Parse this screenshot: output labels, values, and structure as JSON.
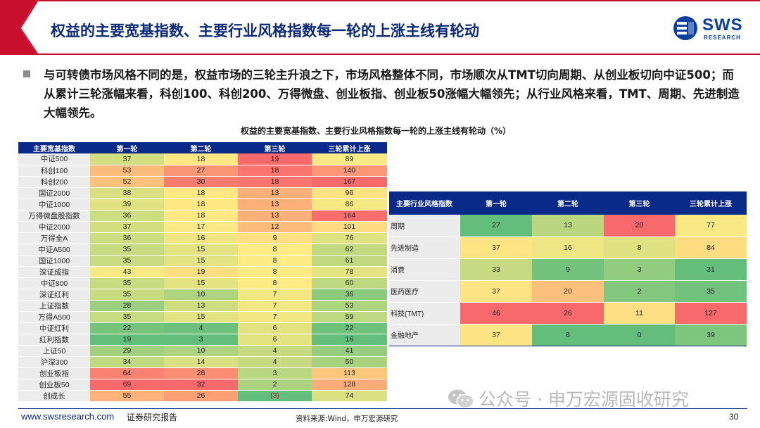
{
  "header": {
    "title": "权益的主要宽基指数、主要行业风格指数每一轮的上涨主线有轮动",
    "logo_text": "SWS",
    "logo_sub": "RESEARCH"
  },
  "bullet": {
    "text": "与可转债市场风格不同的是，权益市场的三轮主升浪之下，市场风格整体不同，市场顺次从TMT切向周期、从创业板切向中证500；而从累计三轮涨幅来看，科创100、科创200、万得微盘、创业板指、创业板50涨幅大幅领先；从行业风格来看，TMT、周期、先进制造大幅领先。"
  },
  "caption": "权益的主要宽基指数、主要行业风格指数每一轮的上涨主线有轮动（%）",
  "broad_table": {
    "headers": [
      "主要宽基指数",
      "第一轮",
      "第二轮",
      "第三轮",
      "三轮累计上涨"
    ],
    "rows": [
      {
        "name": "中证500",
        "r1": "37",
        "r2": "18",
        "r3": "19",
        "total": "89"
      },
      {
        "name": "科创100",
        "r1": "53",
        "r2": "27",
        "r3": "18",
        "total": "140"
      },
      {
        "name": "科创200",
        "r1": "52",
        "r2": "30",
        "r3": "18",
        "total": "167"
      },
      {
        "name": "国证2000",
        "r1": "38",
        "r2": "18",
        "r3": "13",
        "total": "96"
      },
      {
        "name": "中证1000",
        "r1": "39",
        "r2": "18",
        "r3": "13",
        "total": "86"
      },
      {
        "name": "万得微盘股指数",
        "r1": "36",
        "r2": "18",
        "r3": "13",
        "total": "164"
      },
      {
        "name": "中证2000",
        "r1": "37",
        "r2": "17",
        "r3": "12",
        "total": "101"
      },
      {
        "name": "万得全A",
        "r1": "36",
        "r2": "16",
        "r3": "9",
        "total": "76"
      },
      {
        "name": "中证A500",
        "r1": "35",
        "r2": "15",
        "r3": "8",
        "total": "62"
      },
      {
        "name": "国证1000",
        "r1": "35",
        "r2": "15",
        "r3": "8",
        "total": "61"
      },
      {
        "name": "深证成指",
        "r1": "43",
        "r2": "19",
        "r3": "8",
        "total": "78"
      },
      {
        "name": "中证800",
        "r1": "35",
        "r2": "15",
        "r3": "8",
        "total": "60"
      },
      {
        "name": "深证红利",
        "r1": "35",
        "r2": "10",
        "r3": "7",
        "total": "36"
      },
      {
        "name": "上证指数",
        "r1": "28",
        "r2": "13",
        "r3": "7",
        "total": "53"
      },
      {
        "name": "万得A500",
        "r1": "35",
        "r2": "15",
        "r3": "7",
        "total": "59"
      },
      {
        "name": "中证红利",
        "r1": "22",
        "r2": "4",
        "r3": "6",
        "total": "22"
      },
      {
        "name": "红利指数",
        "r1": "19",
        "r2": "3",
        "r3": "6",
        "total": "16"
      },
      {
        "name": "上证50",
        "r1": "29",
        "r2": "10",
        "r3": "4",
        "total": "41"
      },
      {
        "name": "沪深300",
        "r1": "34",
        "r2": "14",
        "r3": "4",
        "total": "50"
      },
      {
        "name": "创业板指",
        "r1": "64",
        "r2": "28",
        "r3": "3",
        "total": "113"
      },
      {
        "name": "创业板50",
        "r1": "69",
        "r2": "32",
        "r3": "2",
        "total": "128"
      },
      {
        "name": "创成长",
        "r1": "55",
        "r2": "26",
        "r3": "(3)",
        "total": "74"
      }
    ]
  },
  "sector_table": {
    "headers": [
      "主要行业风格指数",
      "第一轮",
      "第二轮",
      "第三轮",
      "三轮累计上涨"
    ],
    "rows": [
      {
        "name": "周期",
        "r1": "27",
        "r2": "13",
        "r3": "20",
        "total": "77"
      },
      {
        "name": "先进制造",
        "r1": "37",
        "r2": "16",
        "r3": "8",
        "total": "84"
      },
      {
        "name": "消费",
        "r1": "33",
        "r2": "9",
        "r3": "3",
        "total": "31"
      },
      {
        "name": "医药医疗",
        "r1": "37",
        "r2": "20",
        "r3": "2",
        "total": "35"
      },
      {
        "name": "科技(TMT)",
        "r1": "46",
        "r2": "26",
        "r3": "11",
        "total": "127"
      },
      {
        "name": "金融地产",
        "r1": "37",
        "r2": "8",
        "r3": "0",
        "total": "39"
      }
    ]
  },
  "colors": {
    "header_bg": "#0a2a8a",
    "title": "#0b2a78",
    "accent_red": "#c8102e",
    "heat_low": "#63be7b",
    "heat_mid": "#ffeb84",
    "heat_high": "#f8696b"
  },
  "watermark": {
    "icon": "wechat-icon",
    "text": "公众号 · 申万宏源固收研究"
  },
  "footer": {
    "url": "www.swsresearch.com",
    "doc_type": "证券研究报告",
    "source": "资料来源:Wind，申万宏源研究",
    "page": "30"
  }
}
